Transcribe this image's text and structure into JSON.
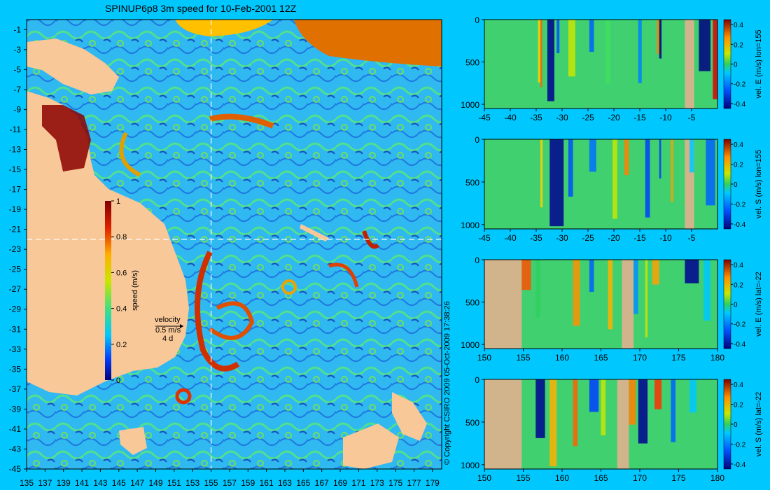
{
  "title": "SPINUP6p8 3m speed for 10-Feb-2001 12Z",
  "copyright": "© Copyright CSIRO 2009   05-Oct-2009 17:38:26",
  "colors": {
    "background": "#00c8ff",
    "land": "#f8c898",
    "section_land": "#d2b48c",
    "crosshair": "#ffffff"
  },
  "velocity_key": {
    "label": "velocity",
    "speed": "0.5 m/s",
    "period": "4 d"
  },
  "map": {
    "lon_ticks": [
      "135",
      "137",
      "139",
      "141",
      "143",
      "145",
      "147",
      "149",
      "151",
      "153",
      "155",
      "157",
      "159",
      "161",
      "163",
      "165",
      "167",
      "169",
      "171",
      "173",
      "175",
      "177",
      "179"
    ],
    "lat_ticks": [
      "-1",
      "-3",
      "-5",
      "-7",
      "-9",
      "-11",
      "-13",
      "-15",
      "-17",
      "-19",
      "-21",
      "-23",
      "-25",
      "-27",
      "-29",
      "-31",
      "-33",
      "-35",
      "-37",
      "-39",
      "-41",
      "-43",
      "-45"
    ],
    "crosshair": {
      "lon": 155,
      "lat": -22
    },
    "colorbar": {
      "label": "speed (m/s)",
      "ticks": [
        "1",
        "0.8",
        "0.6",
        "0.4",
        "0.2",
        "0"
      ]
    }
  },
  "chart_data": [
    {
      "type": "heatmap",
      "title": "",
      "ylabel": "vel. E (m/s) lon=155",
      "x_ticks": [
        "-45",
        "-40",
        "-35",
        "-30",
        "-25",
        "-20",
        "-15",
        "-10",
        "-5"
      ],
      "xlim": [
        -45,
        0
      ],
      "y_ticks": [
        "0",
        "500",
        "1000"
      ],
      "ylim": [
        1050,
        0
      ],
      "colorbar_ticks": [
        "0.4",
        "0.2",
        "0",
        "-0.2",
        "-0.4"
      ]
    },
    {
      "type": "heatmap",
      "title": "",
      "ylabel": "vel. S (m/s) lon=155",
      "x_ticks": [
        "-45",
        "-40",
        "-35",
        "-30",
        "-25",
        "-20",
        "-15",
        "-10",
        "-5"
      ],
      "xlim": [
        -45,
        0
      ],
      "y_ticks": [
        "0",
        "500",
        "1000"
      ],
      "ylim": [
        1050,
        0
      ],
      "colorbar_ticks": [
        "0.4",
        "0.2",
        "0",
        "-0.2",
        "-0.4"
      ]
    },
    {
      "type": "heatmap",
      "title": "",
      "ylabel": "vel. E (m/s) lat=-22",
      "x_ticks": [
        "150",
        "155",
        "160",
        "165",
        "170",
        "175",
        "180"
      ],
      "xlim": [
        150,
        180
      ],
      "y_ticks": [
        "0",
        "500",
        "1000"
      ],
      "ylim": [
        1050,
        0
      ],
      "colorbar_ticks": [
        "0.4",
        "0.2",
        "0",
        "-0.2",
        "-0.4"
      ]
    },
    {
      "type": "heatmap",
      "title": "",
      "ylabel": "vel. S (m/s) lat=-22",
      "x_ticks": [
        "150",
        "155",
        "160",
        "165",
        "170",
        "175",
        "180"
      ],
      "xlim": [
        150,
        180
      ],
      "y_ticks": [
        "0",
        "500",
        "1000"
      ],
      "ylim": [
        1050,
        0
      ],
      "colorbar_ticks": [
        "0.4",
        "0.2",
        "0",
        "-0.2",
        "-0.4"
      ]
    }
  ]
}
